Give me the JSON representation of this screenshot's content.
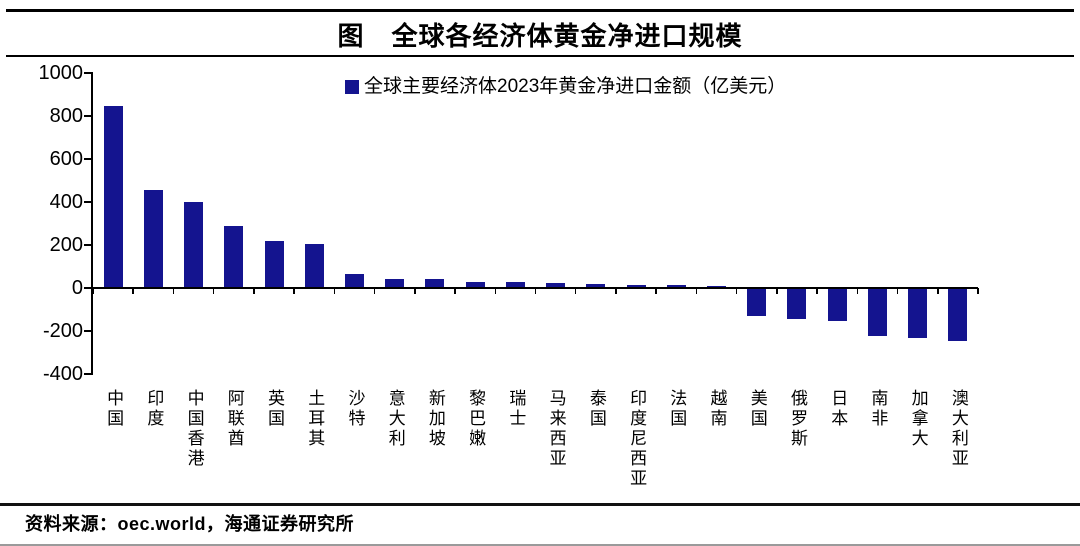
{
  "header": {
    "title": "图　全球各经济体黄金净进口规模"
  },
  "legend": {
    "label": "全球主要经济体2023年黄金净进口金额（亿美元）"
  },
  "footer": {
    "source_text": "资料来源：oec.world，海通证券研究所"
  },
  "colors": {
    "bar": "#14148f",
    "axis": "#000000",
    "text": "#000000"
  },
  "chart_data": {
    "type": "bar",
    "title": "图　全球各经济体黄金净进口规模",
    "legend_entries": [
      "全球主要经济体2023年黄金净进口金额（亿美元）"
    ],
    "legend_position": "top-center",
    "unit": "亿美元",
    "xlabel": "",
    "ylabel": "",
    "grid": false,
    "ylim": [
      -400,
      1000
    ],
    "yticks": [
      1000,
      800,
      600,
      400,
      200,
      0,
      -200,
      -400
    ],
    "categories": [
      "中国",
      "印度",
      "中国香港",
      "阿联酋",
      "英国",
      "土耳其",
      "沙特",
      "意大利",
      "新加坡",
      "黎巴嫩",
      "瑞士",
      "马来西亚",
      "泰国",
      "印度尼西亚",
      "法国",
      "越南",
      "美国",
      "俄罗斯",
      "日本",
      "南非",
      "加拿大",
      "澳大利亚"
    ],
    "values": [
      845,
      455,
      400,
      290,
      218,
      206,
      66,
      43,
      41,
      29,
      28,
      21,
      18,
      15,
      12,
      8,
      -127,
      -140,
      -147,
      -217,
      -230,
      -240
    ]
  }
}
